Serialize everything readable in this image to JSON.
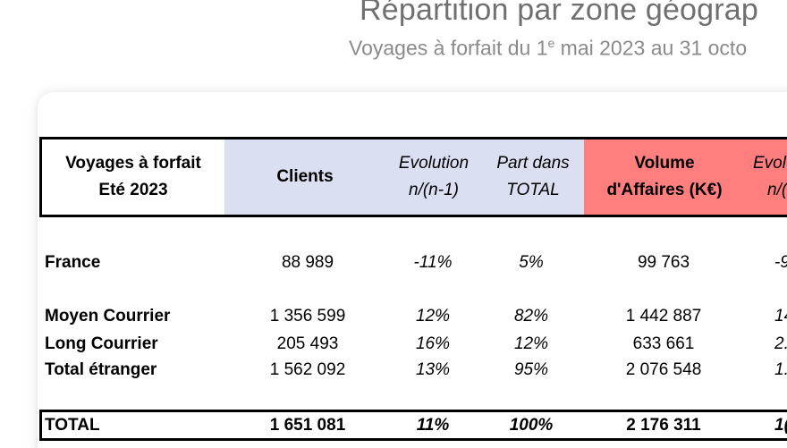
{
  "title": "Répartition par zone géograp",
  "subtitle": {
    "before": "Voyages à forfait du 1",
    "sup": "e",
    "after": " mai 2023 au 31 octo"
  },
  "header": {
    "col0": [
      "Voyages à forfait",
      "Eté 2023"
    ],
    "col1": "Clients",
    "col2": [
      "Evolution",
      "n/(n-1)"
    ],
    "col3": [
      "Part dans",
      "TOTAL"
    ],
    "col4": [
      "Volume",
      "d'Affaires (K€)"
    ],
    "col5": [
      "Evol",
      "n/("
    ]
  },
  "colors": {
    "clients_header_bg": "#dae0f2",
    "volume_header_bg": "#ff7f7f"
  },
  "rows": [
    {
      "label": "France",
      "clients": "88 989",
      "evolution": "-11%",
      "part": "5%",
      "volume": "99 763",
      "evol2": "-9"
    },
    {
      "label": "Moyen Courrier",
      "clients": "1 356 599",
      "evolution": "12%",
      "part": "82%",
      "volume": "1 442 887",
      "evol2": "14"
    },
    {
      "label": "Long Courrier",
      "clients": "205 493",
      "evolution": "16%",
      "part": "12%",
      "volume": "633 661",
      "evol2": "2."
    },
    {
      "label": "Total étranger",
      "clients": "1 562 092",
      "evolution": "13%",
      "part": "95%",
      "volume": "2 076 548",
      "evol2": "1."
    }
  ],
  "total": {
    "label": "TOTAL",
    "clients": "1 651 081",
    "evolution": "11%",
    "part": "100%",
    "volume": "2 176 311",
    "evol2": "1("
  }
}
